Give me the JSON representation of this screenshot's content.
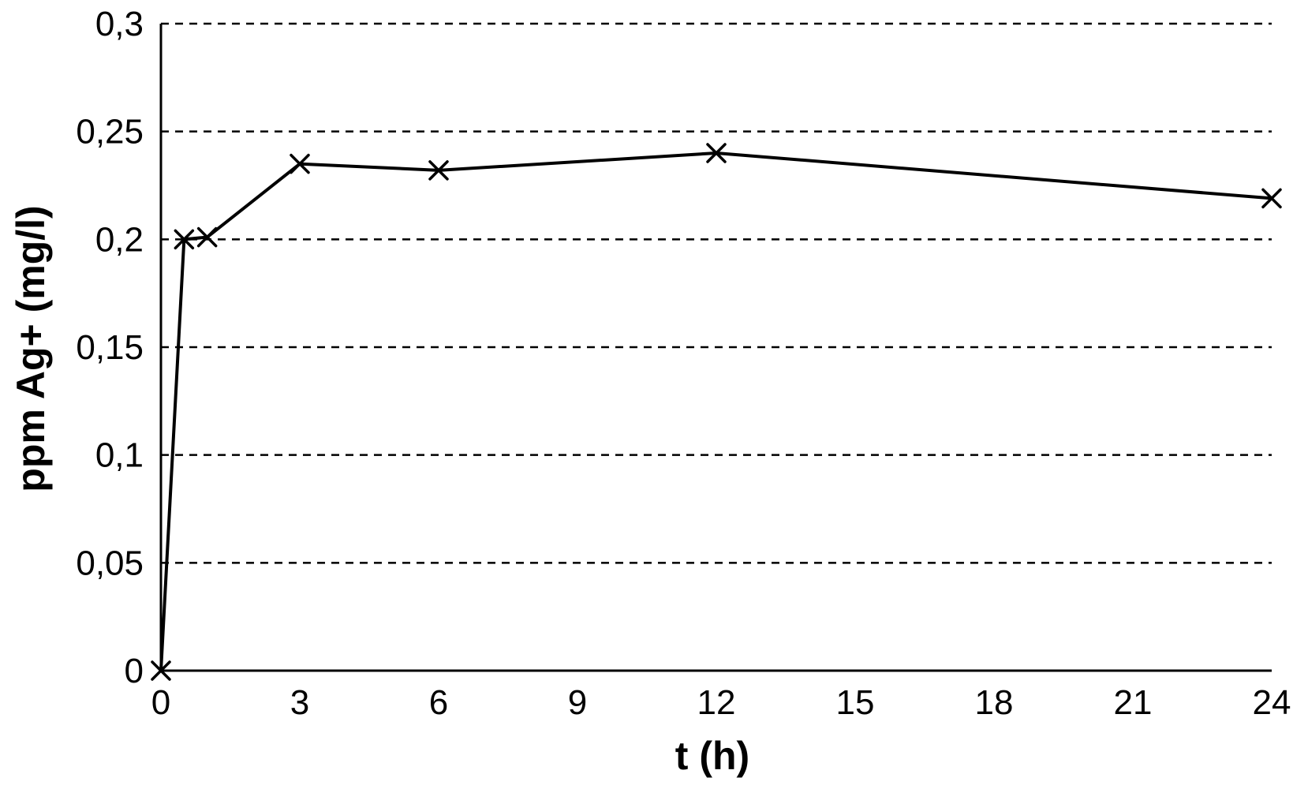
{
  "chart_data": {
    "type": "line",
    "title": "",
    "xlabel": "t (h)",
    "ylabel": "ppm Ag+ (mg/l)",
    "xlim": [
      0,
      24
    ],
    "ylim": [
      0,
      0.3
    ],
    "x_ticks": [
      0,
      3,
      6,
      9,
      12,
      15,
      18,
      21,
      24
    ],
    "x_tick_labels": [
      "0",
      "3",
      "6",
      "9",
      "12",
      "15",
      "18",
      "21",
      "24"
    ],
    "y_ticks": [
      0,
      0.05,
      0.1,
      0.15,
      0.2,
      0.25,
      0.3
    ],
    "y_tick_labels": [
      "0",
      "0,05",
      "0,1",
      "0,15",
      "0,2",
      "0,25",
      "0,3"
    ],
    "grid": "horizontal dashed",
    "legend": "none",
    "series": [
      {
        "marker": "x",
        "color": "#000000",
        "x": [
          0,
          0.5,
          1,
          3,
          6,
          12,
          24
        ],
        "y": [
          0,
          0.2,
          0.201,
          0.235,
          0.232,
          0.24,
          0.219
        ]
      }
    ]
  }
}
